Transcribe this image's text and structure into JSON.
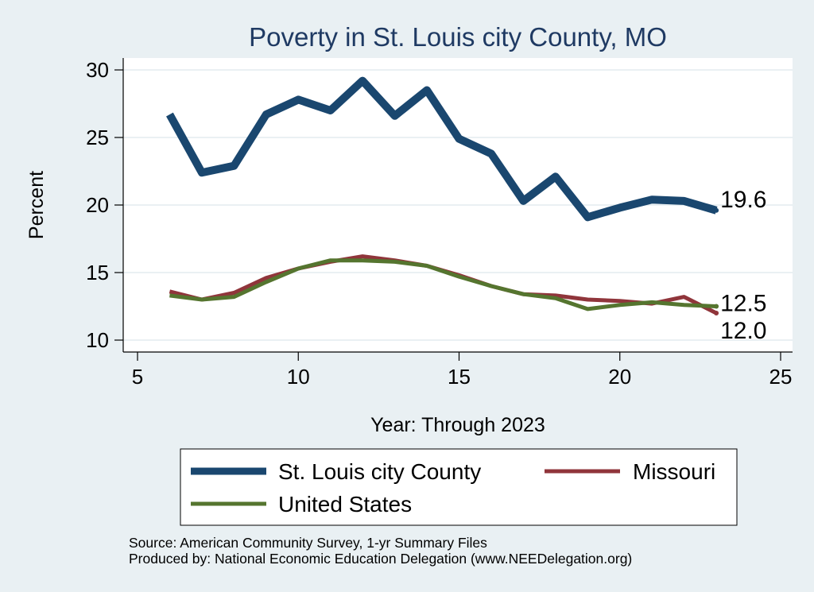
{
  "chart_data": {
    "type": "line",
    "title": "Poverty in St. Louis city County, MO",
    "xlabel": "Year: Through 2023",
    "ylabel": "Percent",
    "xlim": [
      5,
      25
    ],
    "ylim": [
      10,
      30
    ],
    "xticks": [
      5,
      10,
      15,
      20,
      25
    ],
    "yticks": [
      10,
      15,
      20,
      25,
      30
    ],
    "grid": true,
    "legend_position": "bottom",
    "x": [
      6,
      7,
      8,
      9,
      10,
      11,
      12,
      13,
      14,
      15,
      16,
      17,
      18,
      19,
      20,
      21,
      22,
      23
    ],
    "series": [
      {
        "name": "St. Louis city County",
        "color": "#1a476f",
        "values": [
          26.7,
          22.4,
          22.9,
          26.7,
          27.8,
          27.0,
          29.2,
          26.6,
          28.5,
          24.9,
          23.8,
          20.3,
          22.1,
          19.1,
          19.8,
          20.4,
          20.3,
          19.6
        ],
        "end_label": "19.6"
      },
      {
        "name": "Missouri",
        "color": "#90353b",
        "values": [
          13.6,
          13.0,
          13.5,
          14.6,
          15.3,
          15.8,
          16.2,
          15.9,
          15.5,
          14.8,
          14.0,
          13.4,
          13.3,
          13.0,
          12.9,
          12.7,
          13.2,
          12.0
        ],
        "end_label": "12.0"
      },
      {
        "name": "United States",
        "color": "#55752f",
        "values": [
          13.3,
          13.0,
          13.2,
          14.3,
          15.3,
          15.9,
          15.9,
          15.8,
          15.5,
          14.7,
          14.0,
          13.4,
          13.1,
          12.3,
          12.6,
          12.8,
          12.6,
          12.5
        ],
        "end_label": "12.5"
      }
    ]
  },
  "notes": {
    "source": "Source: American Community Survey, 1-yr Summary Files",
    "produced": "Produced by: National Economic Education Delegation (www.NEEDelegation.org)"
  }
}
